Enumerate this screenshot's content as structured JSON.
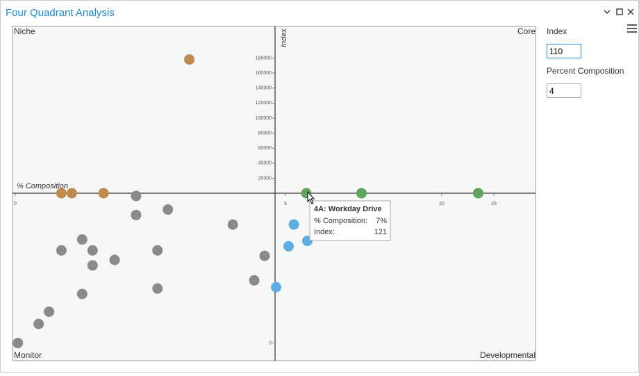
{
  "window": {
    "title": "Four Quadrant Analysis"
  },
  "panel": {
    "fields": [
      {
        "label": "Index",
        "value": 110
      },
      {
        "label": "Percent Composition",
        "value": 4
      }
    ]
  },
  "chart_data": {
    "type": "scatter",
    "quadrants": {
      "top_left": "Niche",
      "top_right": "Core",
      "bottom_left": "Monitor",
      "bottom_right": "Developmental"
    },
    "x_label": "% Composition",
    "y_label": "Index",
    "xlim": [
      0,
      29
    ],
    "ylim": [
      -13,
      222000
    ],
    "xticks": [
      0,
      5,
      20,
      25
    ],
    "yticks": [
      0,
      20000,
      40000,
      60000,
      80000,
      100000,
      120000,
      140000,
      160000,
      180000
    ],
    "series": [
      {
        "color": "#c08a4e",
        "x": [
          2.68,
          0.71,
          0.87,
          1.36
        ],
        "values": [
          178000,
          115,
          118,
          125
        ]
      },
      {
        "color": "#8a8a8a",
        "x": [
          1.86,
          1.86,
          2.35,
          3.35,
          0.71,
          1.03,
          1.19,
          1.19,
          1.53,
          2.19,
          2.19,
          1.03,
          3.84,
          3.68,
          0.52,
          0.36,
          0.04
        ],
        "values": [
          108,
          94,
          98,
          87,
          68,
          76,
          68,
          57,
          61,
          68,
          40,
          36,
          64,
          46,
          23,
          14,
          0
        ]
      },
      {
        "color": "#5dade2",
        "x": [
          5.8,
          5.3,
          7.1,
          4.1
        ],
        "values": [
          87,
          71,
          75,
          41
        ]
      },
      {
        "color": "#5fa35f",
        "x": [
          7,
          12.3,
          23.5
        ],
        "values": [
          121,
          130,
          140
        ]
      }
    ],
    "tooltip": {
      "title": "4A: Workday Drive",
      "rows": [
        {
          "label": "% Composition:",
          "value": "7%"
        },
        {
          "label": "Index:",
          "value": "121"
        }
      ]
    }
  }
}
